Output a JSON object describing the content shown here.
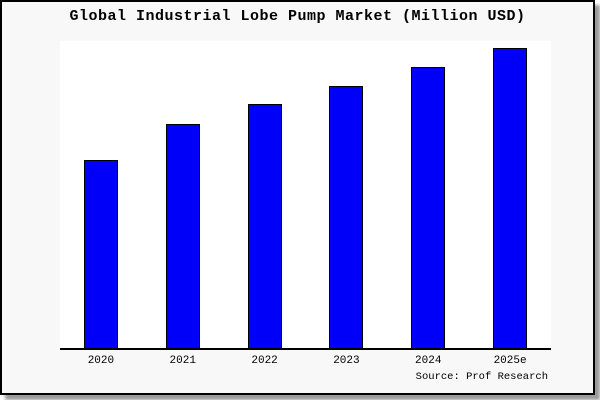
{
  "chart_data": {
    "type": "bar",
    "title": "Global Industrial Lobe Pump Market (Million USD)",
    "categories": [
      "2020",
      "2021",
      "2022",
      "2023",
      "2024",
      "2025e"
    ],
    "values": [
      62.7,
      74.8,
      81.2,
      87.3,
      93.7,
      100
    ],
    "value_note": "relative index; chart shows no y-axis scale, values normalized so 2025e = 100",
    "xlabel": "",
    "ylabel": "",
    "ylim": [
      0,
      100
    ],
    "grid": false,
    "legend": false,
    "source": "Source: Prof Research",
    "colors": {
      "bar_fill": "#0000fa",
      "bar_border": "#000000",
      "axis": "#000000",
      "frame_background": "#f8f8f8",
      "plot_background": "#ffffff",
      "text": "#000000"
    }
  }
}
